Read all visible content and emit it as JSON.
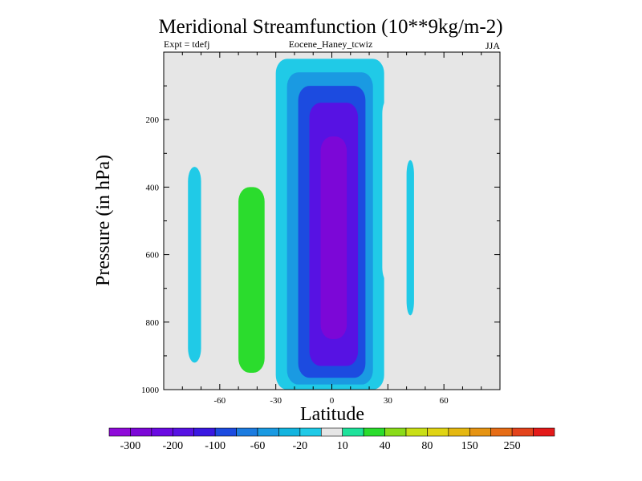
{
  "chart_data": {
    "type": "heatmap",
    "title": "Meridional Streamfunction (10**9kg/m-2)",
    "subtitle_left": "Expt = tdefj",
    "subtitle_center": "Eocene_Haney_tcwiz",
    "subtitle_right": "JJA",
    "xlabel": "Latitude",
    "ylabel": "Pressure (in hPa)",
    "xlim": [
      -90,
      90
    ],
    "ylim": [
      1000,
      0
    ],
    "x_ticks": [
      -60,
      -30,
      0,
      30,
      60
    ],
    "y_ticks": [
      200,
      400,
      600,
      800,
      1000
    ],
    "grid": false,
    "colorbar": {
      "placement": "bottom",
      "colors": [
        "#8f0bd9",
        "#7c07d7",
        "#6a0ae2",
        "#5712e3",
        "#3a18e1",
        "#1c4be0",
        "#1c7ce0",
        "#1a9ae2",
        "#13b4df",
        "#20cae7",
        "#e6e6e6",
        "#1fe29b",
        "#2bdc2d",
        "#8adb1a",
        "#c9df16",
        "#e0d414",
        "#e5b811",
        "#e69413",
        "#e66d16",
        "#e3431c",
        "#e31a1a"
      ],
      "tick_labels": [
        "-300",
        "-200",
        "-100",
        "-60",
        "-20",
        "10",
        "40",
        "80",
        "150",
        "250"
      ]
    },
    "regions": [
      {
        "lat_range": [
          -77,
          -70
        ],
        "pressure_range": [
          340,
          920
        ],
        "value": -15
      },
      {
        "lat_range": [
          -56,
          -30
        ],
        "pressure_range": [
          0,
          980
        ],
        "value": 8
      },
      {
        "lat_range": [
          -50,
          -36
        ],
        "pressure_range": [
          400,
          950
        ],
        "value": 20
      },
      {
        "lat_range": [
          -30,
          28
        ],
        "pressure_range": [
          20,
          1000
        ],
        "value": -20
      },
      {
        "lat_range": [
          -24,
          22
        ],
        "pressure_range": [
          60,
          985
        ],
        "value": -60
      },
      {
        "lat_range": [
          -18,
          18
        ],
        "pressure_range": [
          100,
          965
        ],
        "value": -100
      },
      {
        "lat_range": [
          -12,
          14
        ],
        "pressure_range": [
          150,
          930
        ],
        "value": -200
      },
      {
        "lat_range": [
          -6,
          8
        ],
        "pressure_range": [
          250,
          850
        ],
        "value": -300
      },
      {
        "lat_range": [
          27,
          33
        ],
        "pressure_range": [
          140,
          680
        ],
        "value": 8
      },
      {
        "lat_range": [
          40,
          44
        ],
        "pressure_range": [
          320,
          780
        ],
        "value": -15
      }
    ]
  }
}
